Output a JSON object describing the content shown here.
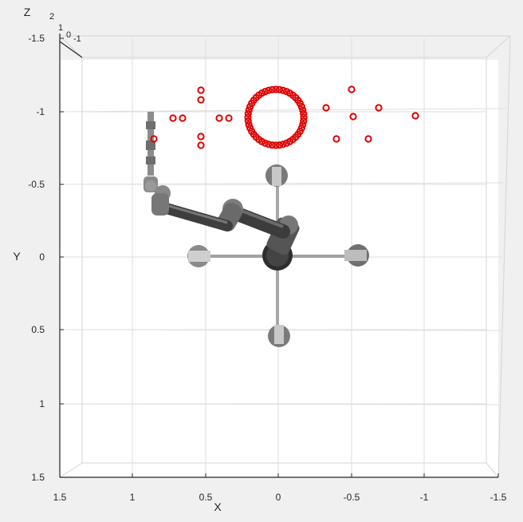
{
  "figure": {
    "background_color": "#f0f0f0",
    "axes_background_color": "#ffffff",
    "grid_color": "#dcdcdc",
    "axis_color": "#262626",
    "marker_color": "#e00000"
  },
  "axes": {
    "x_label": "X",
    "y_label": "Y",
    "z_label": "Z",
    "x_tick_labels": [
      "1.5",
      "1",
      "0.5",
      "0",
      "-0.5",
      "-1",
      "-1.5"
    ],
    "y_tick_labels": [
      "-1.5",
      "-1",
      "-0.5",
      "0",
      "0.5",
      "1",
      "1.5"
    ],
    "z_tick_labels": [
      "2",
      "1",
      "0",
      "-1"
    ]
  },
  "scene": {
    "robot": "robot-arm",
    "base": "cross-shaped-base",
    "targets": "red-circle-markers"
  }
}
